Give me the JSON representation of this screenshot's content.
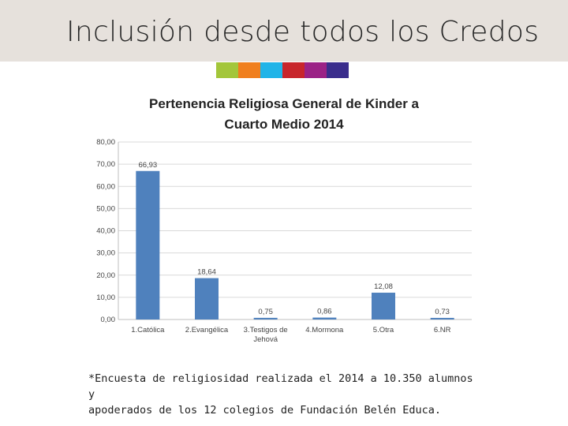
{
  "slide": {
    "title": "Inclusión desde todos los Credos",
    "footnote_line1": "*Encuesta de religiosidad realizada el 2014 a 10.350 alumnos y",
    "footnote_line2": "apoderados de los 12 colegios de Fundación Belén Educa."
  },
  "colors": {
    "swatches": [
      "#a3c63a",
      "#f07f1e",
      "#20b4e8",
      "#c8262c",
      "#9b2286",
      "#3a2d8c"
    ],
    "bar": "#4f81bd",
    "grid": "#d9d9d9"
  },
  "chart_data": {
    "type": "bar",
    "title_line1": "Pertenencia Religiosa General de Kinder a",
    "title_line2": "Cuarto Medio 2014",
    "categories": [
      "1.Católica",
      "2.Evangélica",
      "3.Testigos de Jehová",
      "4.Mormona",
      "5.Otra",
      "6.NR"
    ],
    "category_lines": [
      [
        "1.Católica"
      ],
      [
        "2.Evangélica"
      ],
      [
        "3.Testigos de",
        "Jehová"
      ],
      [
        "4.Mormona"
      ],
      [
        "5.Otra"
      ],
      [
        "6.NR"
      ]
    ],
    "values": [
      66.93,
      18.64,
      0.75,
      0.86,
      12.08,
      0.73
    ],
    "value_labels": [
      "66,93",
      "18,64",
      "0,75",
      "0,86",
      "12,08",
      "0,73"
    ],
    "ylim": [
      0,
      80
    ],
    "yticks": [
      0,
      10,
      20,
      30,
      40,
      50,
      60,
      70,
      80
    ],
    "ytick_labels": [
      "0,00",
      "10,00",
      "20,00",
      "30,00",
      "40,00",
      "50,00",
      "60,00",
      "70,00",
      "80,00"
    ],
    "xlabel": "",
    "ylabel": "",
    "grid": true,
    "legend": "none"
  }
}
